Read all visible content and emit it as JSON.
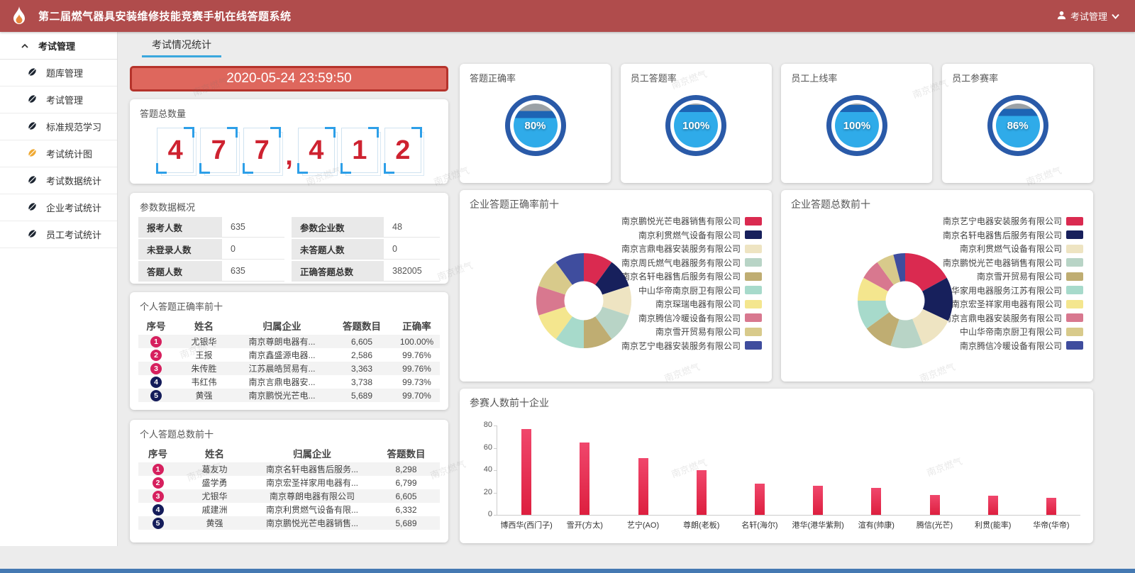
{
  "header": {
    "title": "第二届燃气器具安装维修技能竞赛手机在线答题系统",
    "user_menu": "考试管理",
    "brand_color": "#b04c4c"
  },
  "sidebar": {
    "group": {
      "label": "考试管理"
    },
    "items": [
      {
        "label": "题库管理",
        "active": false
      },
      {
        "label": "考试管理",
        "active": false
      },
      {
        "label": "标准规范学习",
        "active": false
      },
      {
        "label": "考试统计图",
        "active": true
      },
      {
        "label": "考试数据统计",
        "active": false
      },
      {
        "label": "企业考试统计",
        "active": false
      },
      {
        "label": "员工考试统计",
        "active": false
      }
    ],
    "active_icon_color": "#efa933",
    "icon_color": "#1b2430"
  },
  "tabs": {
    "active": "考试情况统计",
    "underline_color": "#3aa7dd"
  },
  "countdown": {
    "value": "2020-05-24 23:59:50",
    "bg": "#de675d",
    "border": "#b5332b"
  },
  "total_answers": {
    "title": "答题总数量",
    "digits": [
      "4",
      "7",
      "7",
      ",",
      "4",
      "1",
      "2"
    ],
    "digit_color": "#ce2230",
    "bracket_color": "#2d9fe8"
  },
  "overview": {
    "title": "参数数据概况",
    "rows": [
      [
        {
          "label": "报考人数",
          "value": "635"
        },
        {
          "label": "参数企业数",
          "value": "48"
        }
      ],
      [
        {
          "label": "未登录人数",
          "value": "0"
        },
        {
          "label": "未答题人数",
          "value": "0"
        }
      ],
      [
        {
          "label": "答题人数",
          "value": "635"
        },
        {
          "label": "正确答题总数",
          "value": "382005"
        }
      ]
    ]
  },
  "badge_colors": {
    "top3": "#d6205e",
    "rest": "#141c5a"
  },
  "personal_accuracy": {
    "title": "个人答题正确率前十",
    "headers": [
      "序号",
      "姓名",
      "归属企业",
      "答题数目",
      "正确率"
    ],
    "rows": [
      {
        "rank": "1",
        "name": "尤银华",
        "company": "南京尊朗电器有...",
        "count": "6,605",
        "rate": "100.00%"
      },
      {
        "rank": "2",
        "name": "王报",
        "company": "南京鑫盛源电器...",
        "count": "2,586",
        "rate": "99.76%"
      },
      {
        "rank": "3",
        "name": "朱传胜",
        "company": "江苏晨皓贸易有...",
        "count": "3,363",
        "rate": "99.76%"
      },
      {
        "rank": "4",
        "name": "韦红伟",
        "company": "南京言鼎电器安...",
        "count": "3,738",
        "rate": "99.73%"
      },
      {
        "rank": "5",
        "name": "黄强",
        "company": "南京鹏悦光芒电...",
        "count": "5,689",
        "rate": "99.70%"
      }
    ]
  },
  "personal_total": {
    "title": "个人答题总数前十",
    "headers": [
      "序号",
      "姓名",
      "归属企业",
      "答题数目"
    ],
    "rows": [
      {
        "rank": "1",
        "name": "葛友功",
        "company": "南京名轩电器售后服务...",
        "count": "8,298"
      },
      {
        "rank": "2",
        "name": "盛学勇",
        "company": "南京宏圣祥家用电器有...",
        "count": "6,799"
      },
      {
        "rank": "3",
        "name": "尤银华",
        "company": "南京尊朗电器有限公司",
        "count": "6,605"
      },
      {
        "rank": "4",
        "name": "戚建洲",
        "company": "南京利贯燃气设备有限...",
        "count": "6,332"
      },
      {
        "rank": "5",
        "name": "黄强",
        "company": "南京鹏悦光芒电器销售...",
        "count": "5,689"
      }
    ]
  },
  "gauges": [
    {
      "title": "答题正确率",
      "value": "80%",
      "pct": 80
    },
    {
      "title": "员工答题率",
      "value": "100%",
      "pct": 100
    },
    {
      "title": "员工上线率",
      "value": "100%",
      "pct": 100
    },
    {
      "title": "员工参赛率",
      "value": "86%",
      "pct": 86
    }
  ],
  "gauge_colors": {
    "ring": "#2a5aa8",
    "liquid": "#2fabe9",
    "wave": "#1d64b4",
    "empty": "#9ba1a6"
  },
  "chart_data": [
    {
      "type": "pie",
      "title": "企业答题正确率前十",
      "labels": [
        "南京鹏悦光芒电器销售有限公司",
        "南京利贯燃气设备有限公司",
        "南京言鼎电器安装服务有限公司",
        "南京周氏燃气电器服务有限公司",
        "南京名轩电器售后服务有限公司",
        "中山华帝南京厨卫有限公司",
        "南京琛瑞电器有限公司",
        "南京腾信冷暖设备有限公司",
        "南京雪开贸易有限公司",
        "南京艺宁电器安装服务有限公司"
      ],
      "values": [
        10,
        10,
        10,
        10,
        10,
        10,
        10,
        10,
        10,
        10
      ],
      "colors": [
        "#da2a50",
        "#17205c",
        "#eee4c2",
        "#b8d4c6",
        "#bfad72",
        "#a7dacb",
        "#f4e68e",
        "#d8788f",
        "#d8ca8b",
        "#3f4d9e"
      ],
      "donut": true,
      "legend_position": "right"
    },
    {
      "type": "pie",
      "title": "企业答题总数前十",
      "labels": [
        "南京艺宁电器安装服务有限公司",
        "南京名轩电器售后服务有限公司",
        "南京利贯燃气设备有限公司",
        "南京鹏悦光芒电器销售有限公司",
        "南京雪开贸易有限公司",
        "博西华家用电器服务江苏有限公司",
        "南京宏圣祥家用电器有限公司",
        "南京言鼎电器安装服务有限公司",
        "中山华帝南京厨卫有限公司",
        "南京腾信冷暖设备有限公司"
      ],
      "values": [
        17,
        15,
        12,
        11,
        10,
        10,
        8,
        7,
        6,
        4
      ],
      "colors": [
        "#da2a50",
        "#17205c",
        "#eee4c2",
        "#b8d4c6",
        "#bfad72",
        "#a7dacb",
        "#f4e68e",
        "#d8788f",
        "#d8ca8b",
        "#3f4d9e"
      ],
      "donut": true,
      "legend_position": "right"
    },
    {
      "type": "bar",
      "title": "参赛人数前十企业",
      "categories": [
        "博西华(西门子)",
        "雪开(方太)",
        "艺宁(AO)",
        "尊朗(老板)",
        "名轩(海尔)",
        "港华(港华紫荆)",
        "渲有(帅康)",
        "腾信(光芒)",
        "利贯(能率)",
        "华帝(华帝)"
      ],
      "values": [
        77,
        65,
        51,
        40,
        28,
        26,
        24,
        18,
        17,
        15
      ],
      "ylim": [
        0,
        80
      ],
      "yticks": [
        0,
        20,
        40,
        60,
        80
      ],
      "bar_color_top": "#f0476c",
      "bar_color_bottom": "#dd1f3f",
      "grid": false,
      "legend_position": "none"
    }
  ],
  "watermark": {
    "text": "南京燃气"
  }
}
